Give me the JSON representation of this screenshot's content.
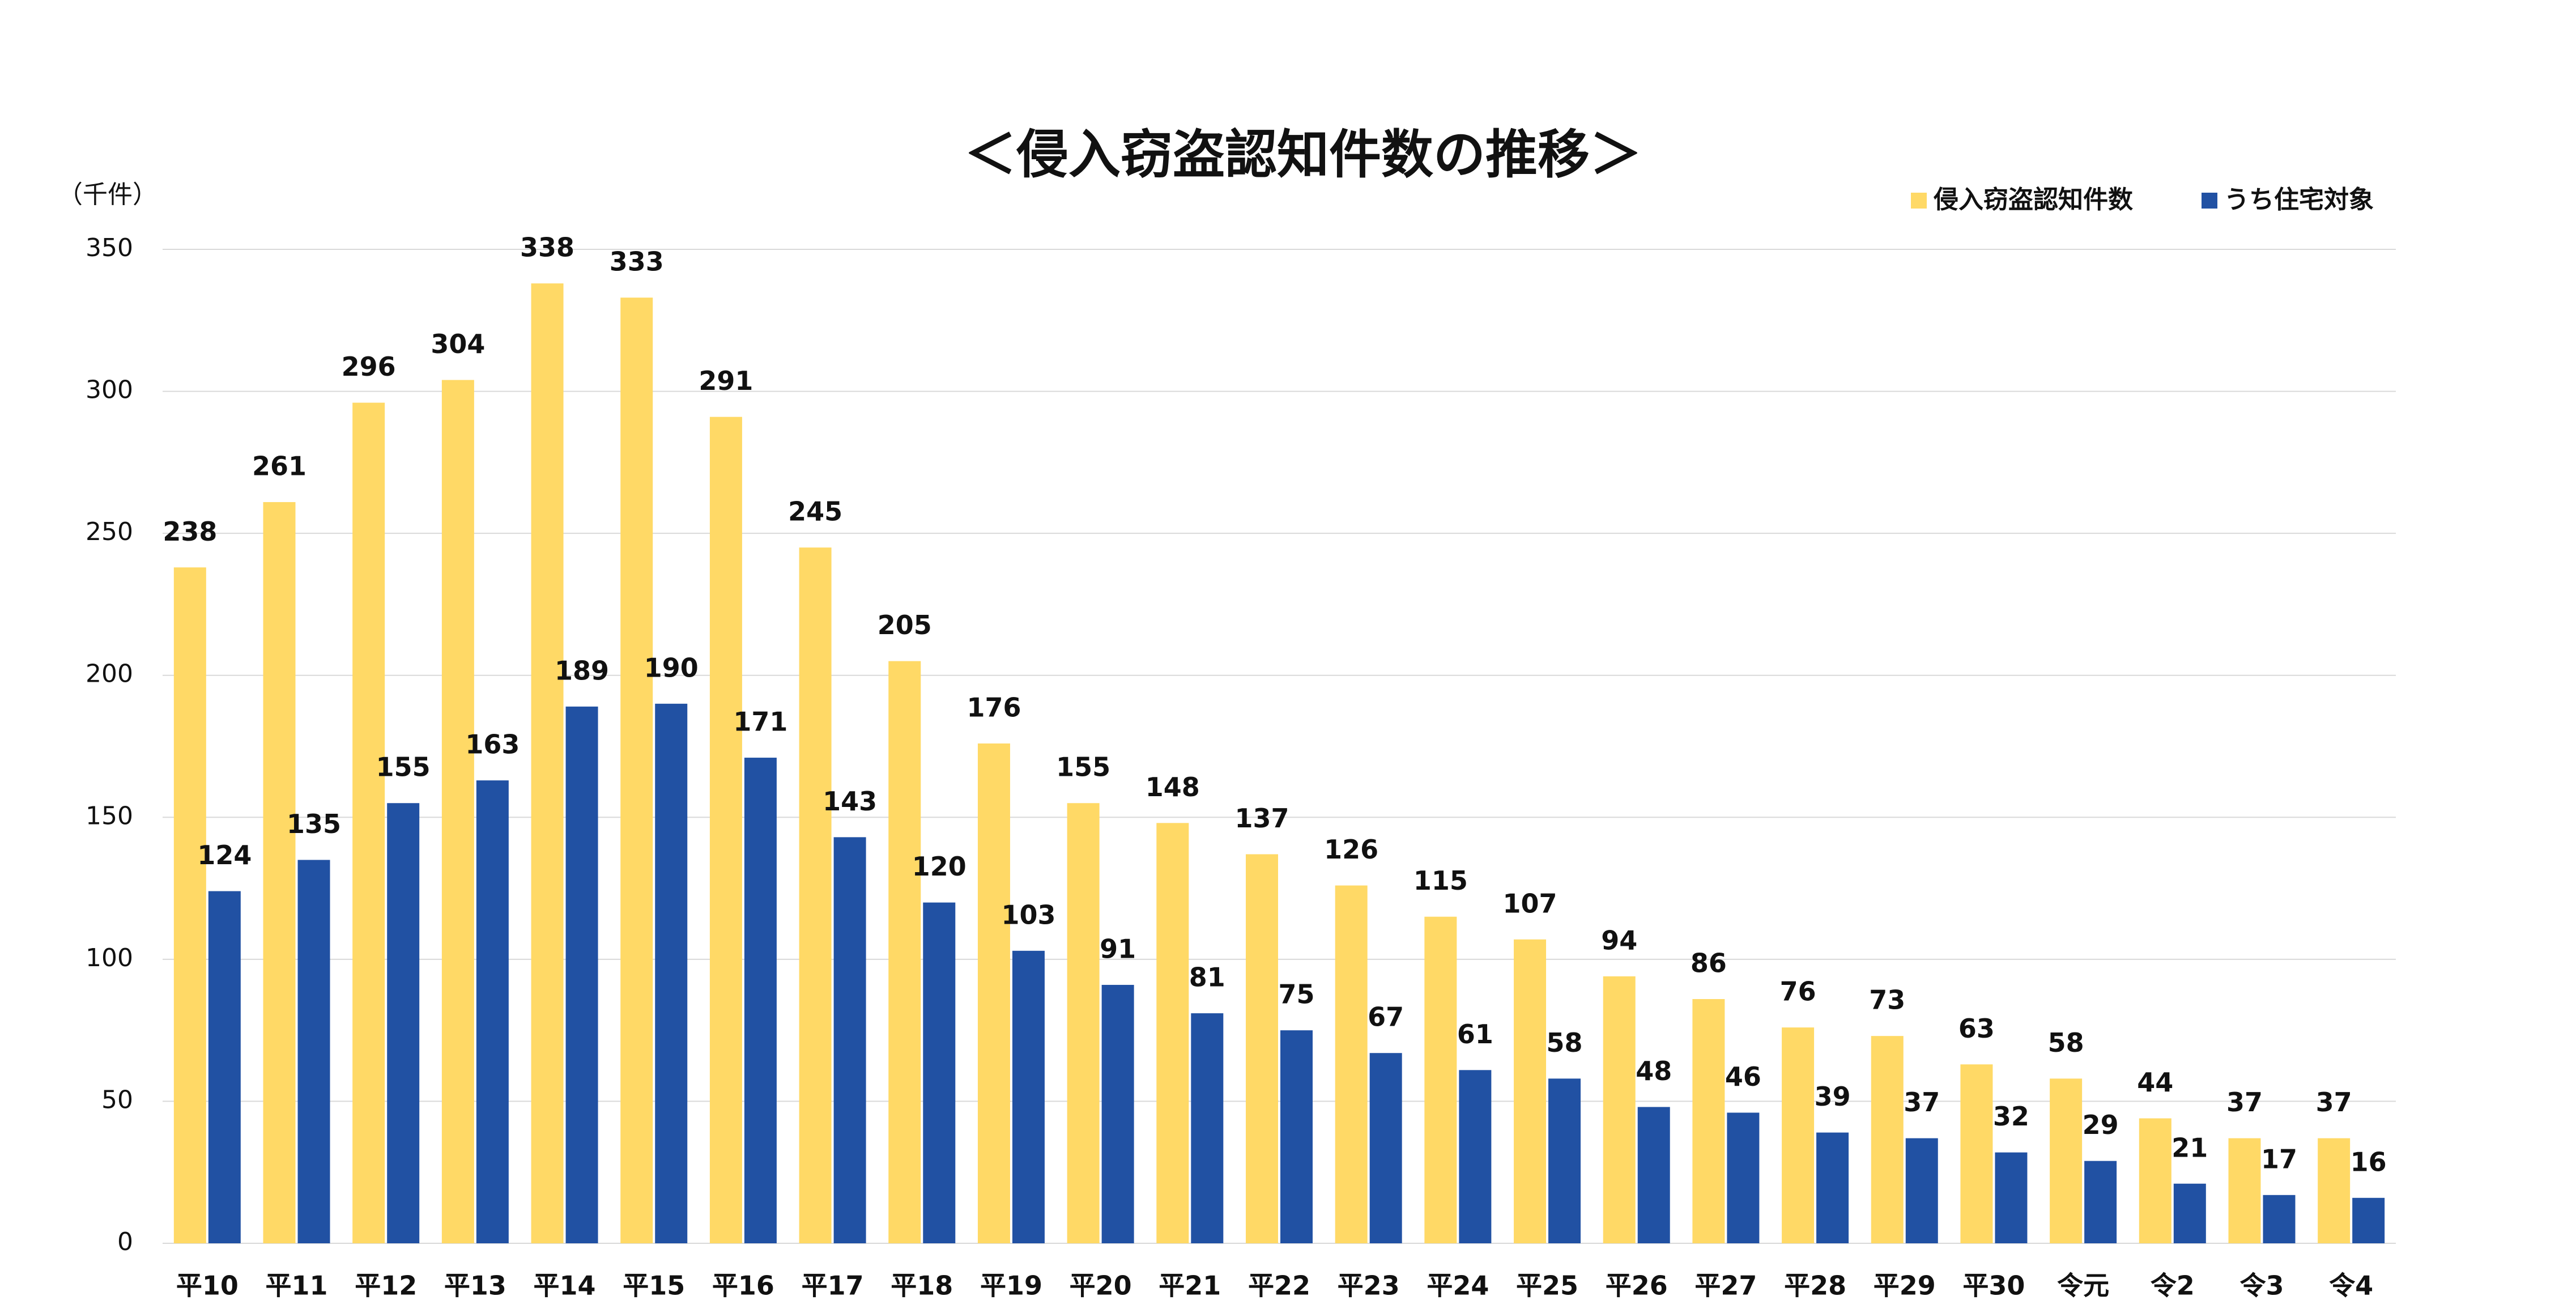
{
  "chart_data": {
    "type": "bar",
    "title": "＜侵入窃盗認知件数の推移＞",
    "y_label": "（千件）",
    "categories": [
      "平10",
      "平11",
      "平12",
      "平13",
      "平14",
      "平15",
      "平16",
      "平17",
      "平18",
      "平19",
      "平20",
      "平21",
      "平22",
      "平23",
      "平24",
      "平25",
      "平26",
      "平27",
      "平28",
      "平29",
      "平30",
      "令元",
      "令2",
      "令3",
      "令4"
    ],
    "series": [
      {
        "name": "侵入窃盗認知件数",
        "color": "#ffd966",
        "values": [
          238,
          261,
          296,
          304,
          338,
          333,
          291,
          245,
          205,
          176,
          155,
          148,
          137,
          126,
          115,
          107,
          94,
          86,
          76,
          73,
          63,
          58,
          44,
          37,
          37
        ]
      },
      {
        "name": "うち住宅対象",
        "color": "#2151a3",
        "values": [
          124,
          135,
          155,
          163,
          189,
          190,
          171,
          143,
          120,
          103,
          91,
          81,
          75,
          67,
          61,
          58,
          48,
          46,
          39,
          37,
          32,
          29,
          21,
          17,
          16
        ]
      }
    ],
    "ylim": [
      0,
      350
    ],
    "yticks": [
      0,
      50,
      100,
      150,
      200,
      250,
      300,
      350
    ],
    "grid": true,
    "legend": "top-right"
  }
}
